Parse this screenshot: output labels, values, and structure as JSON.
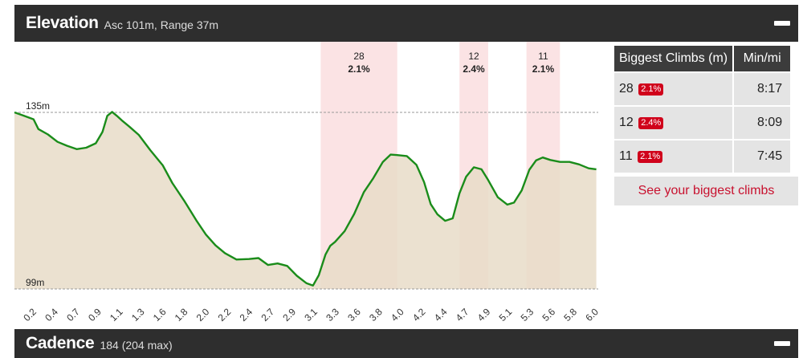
{
  "elevation_panel": {
    "title": "Elevation",
    "subtitle": "Asc 101m, Range 37m"
  },
  "cadence_panel": {
    "title": "Cadence",
    "subtitle": "184 (204 max)"
  },
  "climbs_table": {
    "header_climbs": "Biggest Climbs (m)",
    "header_pace": "Min/mi",
    "rows": [
      {
        "gain": "28",
        "grade": "2.1%",
        "pace": "8:17"
      },
      {
        "gain": "12",
        "grade": "2.4%",
        "pace": "8:09"
      },
      {
        "gain": "11",
        "grade": "2.1%",
        "pace": "7:45"
      }
    ],
    "link_label": "See your biggest climbs"
  },
  "colors": {
    "line": "#1a8c1a",
    "fill": "#e8dcc8",
    "climb_band": "#fbe3e4",
    "badge": "#d0021b",
    "header_bg": "#2e2e2e"
  },
  "chart_data": {
    "type": "area",
    "x_unit": "mi",
    "y_unit": "m",
    "ylim": [
      99,
      135
    ],
    "xlim": [
      0.0,
      6.1
    ],
    "reference_lines": [
      {
        "value": 135,
        "label": "135m"
      },
      {
        "value": 99,
        "label": "99m"
      }
    ],
    "x_ticks": [
      "0.2",
      "0.4",
      "0.7",
      "0.9",
      "1.1",
      "1.3",
      "1.6",
      "1.8",
      "2.0",
      "2.2",
      "2.4",
      "2.7",
      "2.9",
      "3.1",
      "3.3",
      "3.6",
      "3.8",
      "4.0",
      "4.2",
      "4.4",
      "4.7",
      "4.9",
      "5.1",
      "5.3",
      "5.6",
      "5.8",
      "6.0"
    ],
    "climbs": [
      {
        "start": 3.2,
        "end": 4.0,
        "gain_label": "28",
        "grade_label": "2.1%"
      },
      {
        "start": 4.65,
        "end": 4.95,
        "gain_label": "12",
        "grade_label": "2.4%"
      },
      {
        "start": 5.35,
        "end": 5.7,
        "gain_label": "11",
        "grade_label": "2.1%"
      }
    ],
    "series": [
      {
        "x": [
          0.0,
          0.1,
          0.2,
          0.25,
          0.35,
          0.45,
          0.55,
          0.65,
          0.75,
          0.85,
          0.92,
          0.97,
          1.02,
          1.07,
          1.12,
          1.2,
          1.3,
          1.42,
          1.55,
          1.65,
          1.78,
          1.9,
          2.0,
          2.1,
          2.2,
          2.32,
          2.45,
          2.55,
          2.65,
          2.75,
          2.85,
          2.95,
          3.05,
          3.12,
          3.18,
          3.25,
          3.3,
          3.35,
          3.45,
          3.55,
          3.65,
          3.75,
          3.85,
          3.93,
          4.0,
          4.1,
          4.2,
          4.28,
          4.35,
          4.42,
          4.5,
          4.58,
          4.65,
          4.72,
          4.8,
          4.88,
          4.95,
          5.05,
          5.15,
          5.22,
          5.3,
          5.38,
          5.45,
          5.52,
          5.6,
          5.7,
          5.8,
          5.9,
          6.0,
          6.08
        ],
        "y": [
          135,
          134.3,
          133.6,
          131.6,
          130.5,
          129,
          128.2,
          127.5,
          127.8,
          128.7,
          131,
          134.3,
          135.1,
          134.3,
          133.4,
          132.1,
          130.4,
          127.3,
          124.2,
          120.6,
          116.8,
          113,
          110.1,
          107.9,
          106.3,
          105,
          105.1,
          105.3,
          103.9,
          104.2,
          103.7,
          101.7,
          100.2,
          99.7,
          101.8,
          106,
          107.8,
          108.6,
          110.8,
          114.3,
          118.7,
          121.6,
          124.9,
          126.4,
          126.3,
          126.1,
          124.3,
          120.8,
          116.3,
          114.2,
          112.9,
          113.4,
          118.5,
          121.9,
          123.8,
          123.4,
          121.2,
          117.7,
          116.2,
          116.6,
          119.1,
          123.3,
          125.2,
          125.8,
          125.3,
          124.9,
          124.9,
          124.4,
          123.6,
          123.4
        ]
      }
    ]
  }
}
